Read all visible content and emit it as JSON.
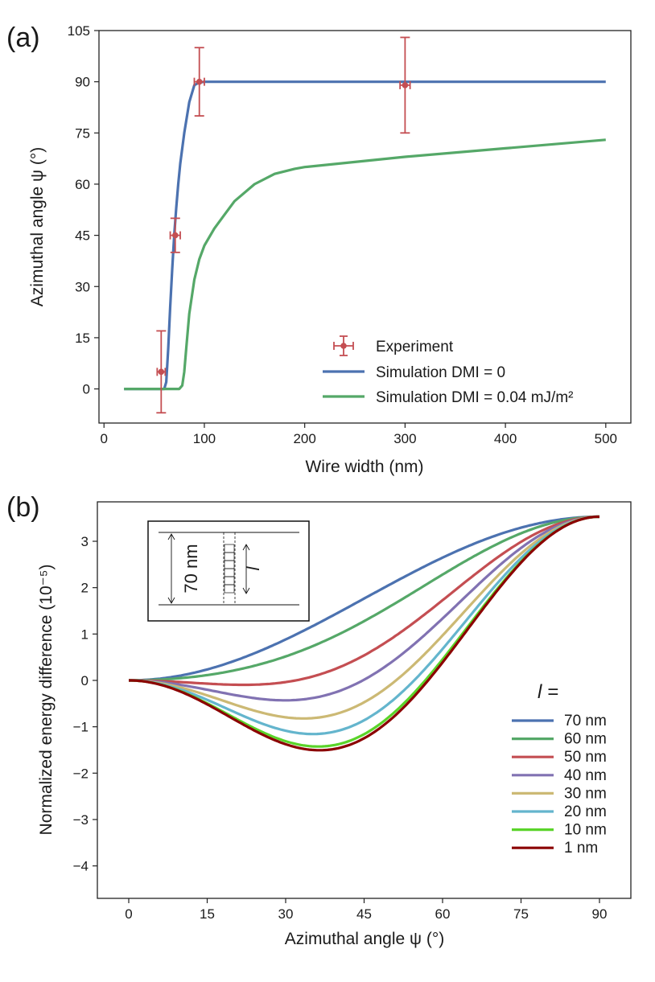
{
  "chart_data": [
    {
      "panel_label": "(a)",
      "type": "line",
      "xlabel": "Wire width (nm)",
      "ylabel": "Azimuthal angle ψ (°)",
      "xlim": [
        -5,
        525
      ],
      "ylim": [
        -10,
        105
      ],
      "xticks": [
        0,
        100,
        200,
        300,
        400,
        500
      ],
      "yticks": [
        0,
        15,
        30,
        45,
        60,
        75,
        90,
        105
      ],
      "legend_position": "lower-right",
      "series": [
        {
          "name": "Experiment",
          "kind": "errorbar",
          "color": "#c44e52",
          "points": [
            {
              "x": 57,
              "y": 5,
              "xerr": 4,
              "yerr": 12
            },
            {
              "x": 71,
              "y": 45,
              "xerr": 5,
              "yerr": 5
            },
            {
              "x": 95,
              "y": 90,
              "xerr": 5,
              "yerr": 10
            },
            {
              "x": 300,
              "y": 89,
              "xerr": 5,
              "yerr": 14
            }
          ]
        },
        {
          "name": "Simulation DMI = 0",
          "kind": "line",
          "color": "#4c72b0",
          "x": [
            20,
            60,
            62,
            64,
            66,
            68,
            70,
            72,
            74,
            76,
            80,
            85,
            90,
            95,
            100,
            110,
            150,
            200,
            300,
            400,
            500
          ],
          "y": [
            0,
            0,
            2,
            12,
            24,
            35,
            45,
            53,
            60,
            66,
            75,
            84,
            89,
            89.8,
            90,
            90,
            90,
            90,
            90,
            90,
            90
          ]
        },
        {
          "name": "Simulation DMI = 0.04 mJ/m²",
          "kind": "line",
          "color": "#55a868",
          "x": [
            20,
            60,
            75,
            78,
            80,
            82,
            85,
            88,
            90,
            95,
            100,
            110,
            120,
            130,
            150,
            170,
            190,
            200,
            250,
            300,
            400,
            500
          ],
          "y": [
            0,
            0,
            0,
            1,
            5,
            12,
            22,
            28,
            32,
            38,
            42,
            47,
            51,
            55,
            60,
            63,
            64.5,
            65,
            66.5,
            68,
            70.5,
            73
          ]
        }
      ]
    },
    {
      "panel_label": "(b)",
      "type": "line",
      "xlabel": "Azimuthal angle ψ (°)",
      "ylabel": "Normalized energy difference (10⁻⁵)",
      "xlim": [
        -6,
        96
      ],
      "ylim": [
        -4.7,
        3.85
      ],
      "xticks": [
        0,
        15,
        30,
        45,
        60,
        75,
        90
      ],
      "yticks": [
        -4,
        -3,
        -2,
        -1,
        0,
        1,
        2,
        3
      ],
      "legend_title": "l =",
      "legend_position": "right",
      "inset": {
        "dimension_label": "70 nm",
        "variable_label": "l"
      },
      "series": [
        {
          "name": "70 nm",
          "color": "#4c72b0",
          "c": 3.53,
          "a": 0
        },
        {
          "name": "60 nm",
          "color": "#55a868",
          "c": 3.53,
          "a": 1.95
        },
        {
          "name": "50 nm",
          "color": "#c44e52",
          "c": 3.53,
          "a": 4.9
        },
        {
          "name": "40 nm",
          "color": "#8172b2",
          "c": 3.53,
          "a": 7.0
        },
        {
          "name": "30 nm",
          "color": "#ccb974",
          "c": 3.53,
          "a": 8.95
        },
        {
          "name": "20 nm",
          "color": "#64b5cd",
          "c": 3.53,
          "a": 10.5
        },
        {
          "name": "10 nm",
          "color": "#5ad42a",
          "c": 3.53,
          "a": 11.7
        },
        {
          "name": " 1 nm",
          "color": "#8b0000",
          "c": 3.53,
          "a": 12.05
        }
      ]
    }
  ]
}
